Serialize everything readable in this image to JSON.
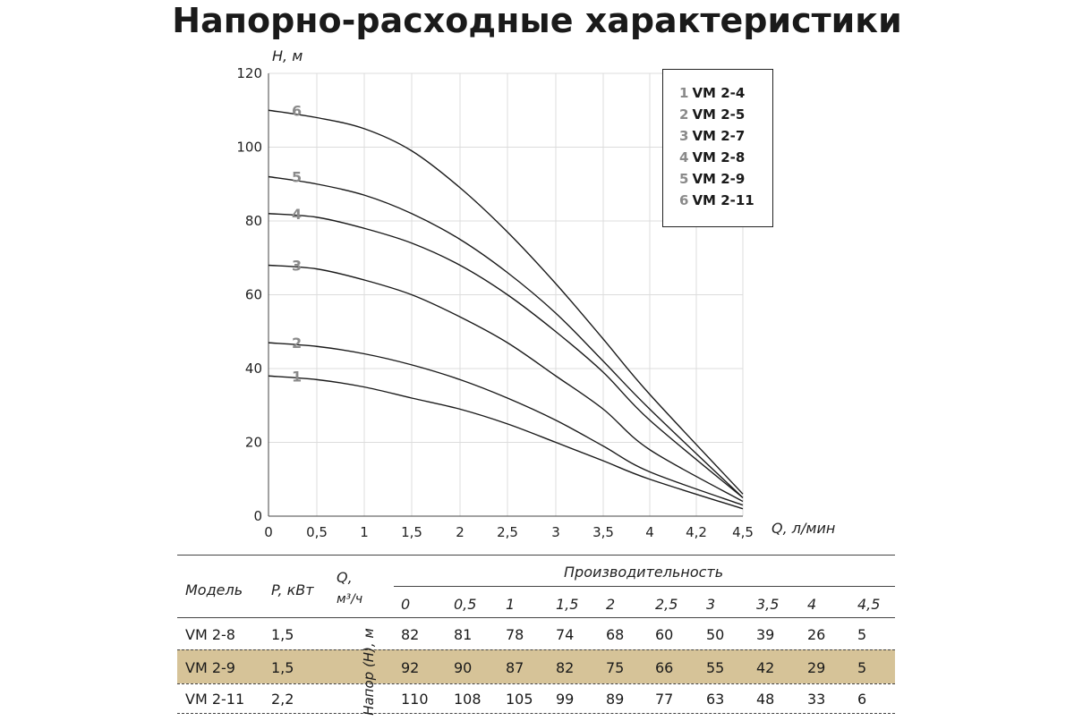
{
  "title": "Напорно-расходные характеристики",
  "chart_data": {
    "type": "line",
    "ylabel": "H, м",
    "xlabel": "Q, л/мин",
    "x_ticks": [
      "0",
      "0,5",
      "1",
      "1,5",
      "2",
      "2,5",
      "3",
      "3,5",
      "4",
      "4,2",
      "4,5"
    ],
    "y_ticks": [
      "0",
      "20",
      "40",
      "60",
      "80",
      "100",
      "120"
    ],
    "ylim": [
      0,
      120
    ],
    "grid": true,
    "legend_position": "top-right",
    "x": [
      0,
      0.5,
      1,
      1.5,
      2,
      2.5,
      3,
      3.5,
      4,
      4.5
    ],
    "series": [
      {
        "name": "VM 2-4",
        "number": "1",
        "values": [
          38,
          37,
          35,
          32,
          29,
          25,
          20,
          15,
          10,
          2
        ]
      },
      {
        "name": "VM 2-5",
        "number": "2",
        "values": [
          47,
          46,
          44,
          41,
          37,
          32,
          26,
          19,
          12,
          3
        ]
      },
      {
        "name": "VM 2-7",
        "number": "3",
        "values": [
          68,
          67,
          64,
          60,
          54,
          47,
          38,
          29,
          18,
          4
        ]
      },
      {
        "name": "VM 2-8",
        "number": "4",
        "values": [
          82,
          81,
          78,
          74,
          68,
          60,
          50,
          39,
          26,
          5
        ]
      },
      {
        "name": "VM 2-9",
        "number": "5",
        "values": [
          92,
          90,
          87,
          82,
          75,
          66,
          55,
          42,
          29,
          5
        ]
      },
      {
        "name": "VM 2-11",
        "number": "6",
        "values": [
          110,
          108,
          105,
          99,
          89,
          77,
          63,
          48,
          33,
          6
        ]
      }
    ]
  },
  "table": {
    "col_model": "Модель",
    "col_power": "P, кВт",
    "col_q": "Q,",
    "col_q_unit": "м³/ч",
    "group_header": "Производительность",
    "head_label": "Напор (H), м",
    "q_values": [
      "0",
      "0,5",
      "1",
      "1,5",
      "2",
      "2,5",
      "3",
      "3,5",
      "4",
      "4,5"
    ],
    "rows": [
      {
        "model": "VM 2-8",
        "power": "1,5",
        "values": [
          "82",
          "81",
          "78",
          "74",
          "68",
          "60",
          "50",
          "39",
          "26",
          "5"
        ]
      },
      {
        "model": "VM 2-9",
        "power": "1,5",
        "values": [
          "92",
          "90",
          "87",
          "82",
          "75",
          "66",
          "55",
          "42",
          "29",
          "5"
        ],
        "highlight": "#d6c398"
      },
      {
        "model": "VM 2-11",
        "power": "2,2",
        "values": [
          "110",
          "108",
          "105",
          "99",
          "89",
          "77",
          "63",
          "48",
          "33",
          "6"
        ]
      }
    ]
  }
}
